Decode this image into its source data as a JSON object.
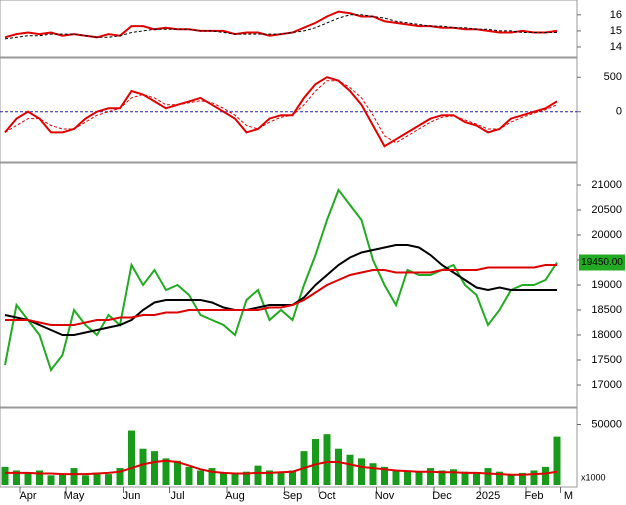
{
  "chart_data": [
    {
      "type": "line",
      "ylim": [
        13.5,
        16.8
      ],
      "yticks": [
        14,
        15,
        16
      ],
      "series": [
        {
          "color": "#e00000",
          "dash": false,
          "values": [
            14.6,
            14.8,
            14.9,
            14.8,
            14.9,
            14.7,
            14.8,
            14.7,
            14.6,
            14.8,
            14.7,
            15.3,
            15.3,
            15.1,
            15.2,
            15.1,
            15.1,
            15.0,
            15.0,
            15.0,
            14.8,
            14.9,
            14.9,
            14.7,
            14.8,
            14.9,
            15.2,
            15.5,
            15.9,
            16.2,
            16.1,
            15.9,
            15.9,
            15.6,
            15.5,
            15.4,
            15.3,
            15.3,
            15.2,
            15.2,
            15.1,
            15.1,
            15.0,
            14.9,
            14.9,
            15.0,
            14.9,
            14.9,
            15.0,
            null
          ]
        },
        {
          "color": "#000000",
          "dash": true,
          "values": [
            14.5,
            14.6,
            14.7,
            14.7,
            14.8,
            14.8,
            14.8,
            14.7,
            14.6,
            14.6,
            14.7,
            14.9,
            15.0,
            15.1,
            15.1,
            15.1,
            15.1,
            15.0,
            15.0,
            14.9,
            14.8,
            14.8,
            14.8,
            14.8,
            14.8,
            14.9,
            15.0,
            15.2,
            15.5,
            15.8,
            16.0,
            16.0,
            15.9,
            15.8,
            15.6,
            15.5,
            15.4,
            15.3,
            15.3,
            15.2,
            15.2,
            15.1,
            15.1,
            15.0,
            15.0,
            14.9,
            14.9,
            14.9,
            14.9,
            null
          ]
        }
      ]
    },
    {
      "type": "line",
      "ylim": [
        -700,
        750
      ],
      "yticks": [
        0,
        500
      ],
      "zero_line_color": "#2020b0",
      "series": [
        {
          "color": "#e00000",
          "dash": false,
          "values": [
            -300,
            -100,
            0,
            -100,
            -300,
            -300,
            -250,
            -100,
            0,
            50,
            50,
            300,
            250,
            150,
            50,
            100,
            150,
            200,
            100,
            0,
            -100,
            -300,
            -250,
            -100,
            -50,
            -50,
            200,
            400,
            500,
            450,
            300,
            100,
            -200,
            -500,
            -400,
            -300,
            -200,
            -100,
            -50,
            -50,
            -150,
            -200,
            -300,
            -250,
            -100,
            -50,
            0,
            50,
            150,
            null
          ]
        },
        {
          "color": "#e00000",
          "dash": true,
          "values": [
            -300,
            -200,
            -100,
            -100,
            -200,
            -250,
            -250,
            -150,
            -50,
            0,
            50,
            200,
            250,
            200,
            100,
            100,
            130,
            160,
            130,
            50,
            -50,
            -200,
            -250,
            -150,
            -80,
            -50,
            100,
            300,
            450,
            450,
            350,
            200,
            -50,
            -350,
            -450,
            -350,
            -250,
            -150,
            -80,
            -60,
            -120,
            -180,
            -250,
            -250,
            -150,
            -80,
            -20,
            30,
            100,
            null
          ]
        }
      ]
    },
    {
      "type": "line",
      "ylim": [
        16600,
        21400
      ],
      "yticks": [
        17000,
        17500,
        18000,
        18500,
        19000,
        19500,
        20000,
        20500,
        21000
      ],
      "series": [
        {
          "color": "#22aa22",
          "dash": false,
          "values": [
            17400,
            18600,
            18300,
            18000,
            17300,
            17600,
            18500,
            18200,
            18000,
            18400,
            18200,
            19400,
            19000,
            19300,
            18900,
            19000,
            18800,
            18400,
            18300,
            18200,
            18000,
            18700,
            18900,
            18300,
            18500,
            18300,
            19000,
            19600,
            20300,
            20900,
            20600,
            20300,
            19500,
            19000,
            18600,
            19300,
            19200,
            19200,
            19300,
            19400,
            19000,
            18800,
            18200,
            18500,
            18900,
            19000,
            19000,
            19100,
            19450,
            null
          ],
          "last_label": "19450.00"
        },
        {
          "color": "#000000",
          "dash": false,
          "values": [
            18400,
            18350,
            18300,
            18200,
            18100,
            18000,
            18000,
            18050,
            18100,
            18150,
            18200,
            18300,
            18500,
            18650,
            18700,
            18700,
            18700,
            18700,
            18650,
            18550,
            18500,
            18500,
            18550,
            18600,
            18600,
            18600,
            18750,
            19000,
            19200,
            19400,
            19550,
            19650,
            19700,
            19750,
            19800,
            19800,
            19750,
            19600,
            19400,
            19250,
            19100,
            18950,
            18900,
            18950,
            18900,
            18900,
            18900,
            18900,
            18900,
            null
          ]
        },
        {
          "color": "#dd0000",
          "dash": false,
          "values": [
            18300,
            18300,
            18300,
            18250,
            18200,
            18200,
            18200,
            18250,
            18300,
            18300,
            18350,
            18350,
            18400,
            18400,
            18450,
            18450,
            18500,
            18500,
            18500,
            18500,
            18500,
            18500,
            18500,
            18550,
            18550,
            18600,
            18700,
            18850,
            19000,
            19100,
            19200,
            19250,
            19300,
            19300,
            19250,
            19250,
            19250,
            19250,
            19300,
            19300,
            19300,
            19300,
            19350,
            19350,
            19350,
            19350,
            19350,
            19400,
            19400,
            null
          ]
        }
      ]
    },
    {
      "type": "bar",
      "ylim": [
        0,
        62000
      ],
      "yticks": [
        50000
      ],
      "unit_label": "x1000",
      "categories": [
        null,
        null,
        "Apr",
        null,
        null,
        null,
        "May",
        null,
        null,
        null,
        null,
        "Jun",
        null,
        null,
        null,
        "Jul",
        null,
        null,
        null,
        null,
        "Aug",
        null,
        null,
        null,
        null,
        "Sep",
        null,
        null,
        "Oct",
        null,
        null,
        null,
        null,
        "Nov",
        null,
        null,
        null,
        null,
        "Dec",
        null,
        null,
        null,
        "2025",
        null,
        null,
        null,
        "Feb",
        null,
        null,
        "M"
      ],
      "series": [
        {
          "color": "#1a9a1a",
          "mark": "bar",
          "values": [
            15000,
            12000,
            10000,
            12000,
            8000,
            9000,
            14000,
            8000,
            10000,
            9000,
            14000,
            45000,
            30000,
            28000,
            22000,
            20000,
            15000,
            12000,
            14000,
            10000,
            9000,
            11000,
            16000,
            12000,
            10000,
            12000,
            28000,
            38000,
            42000,
            30000,
            25000,
            22000,
            18000,
            15000,
            12000,
            12000,
            11000,
            14000,
            12000,
            13000,
            11000,
            10000,
            14000,
            11000,
            9000,
            10000,
            12000,
            15000,
            40000,
            null
          ]
        },
        {
          "color": "#dd0000",
          "mark": "line",
          "values": [
            10000,
            10000,
            10000,
            9500,
            9500,
            9000,
            9000,
            9000,
            9500,
            10000,
            11000,
            14000,
            17000,
            19000,
            20000,
            19000,
            16000,
            13000,
            11000,
            10000,
            9500,
            9500,
            10000,
            10000,
            10500,
            11000,
            14000,
            17000,
            19000,
            19000,
            17000,
            15000,
            14000,
            13000,
            12000,
            11500,
            11000,
            11000,
            10500,
            10500,
            10000,
            10000,
            9500,
            9000,
            8500,
            8500,
            9000,
            9500,
            11000,
            null
          ]
        }
      ]
    }
  ]
}
